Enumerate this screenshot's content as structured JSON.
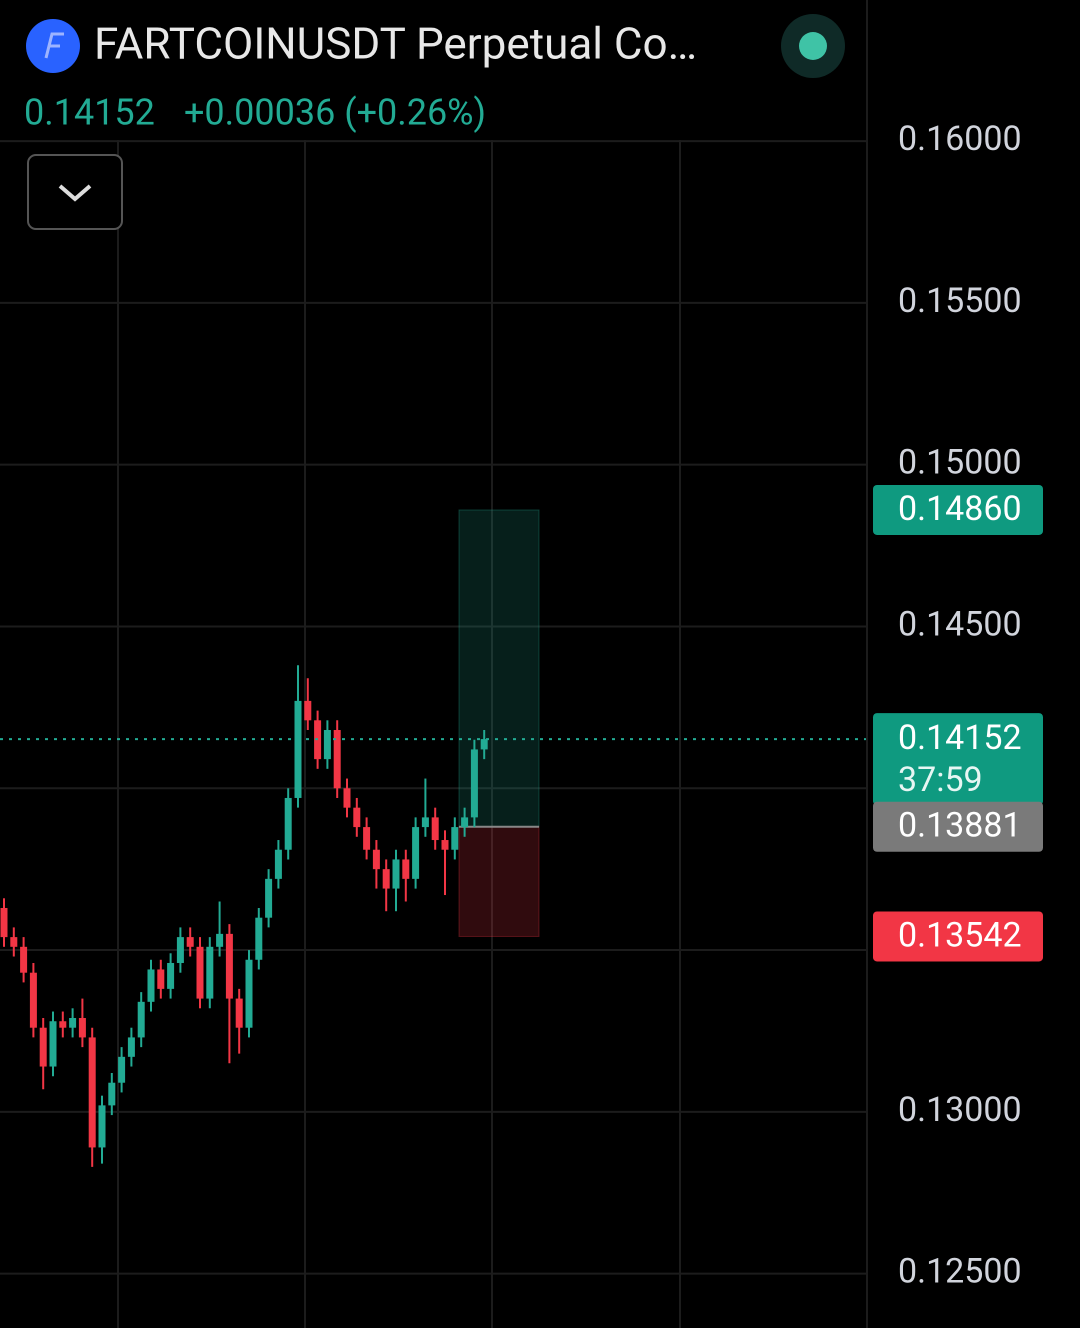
{
  "header": {
    "title": "FARTCOINUSDT Perpetual Co…",
    "last": 0.14152,
    "change": "+0.00036 (+0.26%)"
  },
  "chart_data": {
    "type": "candlestick",
    "up_color": "#22ab94",
    "down_color": "#f23645",
    "ylim": [
      0.12332,
      0.16436
    ],
    "yticks": [
      {
        "value": 0.16,
        "label": "0.16000"
      },
      {
        "value": 0.155,
        "label": "0.15500"
      },
      {
        "value": 0.15,
        "label": "0.15000"
      },
      {
        "value": 0.145,
        "label": "0.14500"
      },
      {
        "value": 0.14,
        "label": "0.14000"
      },
      {
        "value": 0.135,
        "label": "0.13500"
      },
      {
        "value": 0.13,
        "label": "0.13000"
      },
      {
        "value": 0.125,
        "label": "0.12500"
      }
    ],
    "grid": true,
    "ohlc": [
      [
        0.1363,
        0.1366,
        0.1351,
        0.1354
      ],
      [
        0.1354,
        0.1357,
        0.1348,
        0.1351
      ],
      [
        0.1351,
        0.1354,
        0.134,
        0.1343
      ],
      [
        0.1343,
        0.1346,
        0.1323,
        0.1326
      ],
      [
        0.1326,
        0.1329,
        0.1307,
        0.1314
      ],
      [
        0.1314,
        0.1331,
        0.1311,
        0.1328
      ],
      [
        0.1328,
        0.1331,
        0.1323,
        0.1326
      ],
      [
        0.1326,
        0.1332,
        0.1323,
        0.1329
      ],
      [
        0.1329,
        0.1335,
        0.132,
        0.1323
      ],
      [
        0.1323,
        0.1326,
        0.1283,
        0.1289
      ],
      [
        0.1289,
        0.1305,
        0.1284,
        0.1302
      ],
      [
        0.1302,
        0.1312,
        0.1299,
        0.1309
      ],
      [
        0.1309,
        0.132,
        0.1306,
        0.1317
      ],
      [
        0.1317,
        0.1326,
        0.1314,
        0.1323
      ],
      [
        0.1323,
        0.1337,
        0.132,
        0.1334
      ],
      [
        0.1334,
        0.1347,
        0.1331,
        0.1344
      ],
      [
        0.1344,
        0.1347,
        0.1335,
        0.1338
      ],
      [
        0.1338,
        0.1349,
        0.1335,
        0.1346
      ],
      [
        0.1346,
        0.1357,
        0.1343,
        0.1354
      ],
      [
        0.1354,
        0.1357,
        0.1348,
        0.1351
      ],
      [
        0.1351,
        0.1354,
        0.1332,
        0.1335
      ],
      [
        0.1335,
        0.1354,
        0.1332,
        0.1351
      ],
      [
        0.1351,
        0.1365,
        0.1348,
        0.1355
      ],
      [
        0.1355,
        0.1358,
        0.1315,
        0.1335
      ],
      [
        0.1335,
        0.1338,
        0.1318,
        0.1326
      ],
      [
        0.1326,
        0.135,
        0.1323,
        0.1347
      ],
      [
        0.1347,
        0.1363,
        0.1344,
        0.136
      ],
      [
        0.136,
        0.1375,
        0.1357,
        0.1372
      ],
      [
        0.1372,
        0.1384,
        0.1369,
        0.1381
      ],
      [
        0.1381,
        0.14,
        0.1378,
        0.1397
      ],
      [
        0.1397,
        0.1438,
        0.1394,
        0.1427
      ],
      [
        0.1427,
        0.1434,
        0.1418,
        0.1421
      ],
      [
        0.1421,
        0.1424,
        0.1406,
        0.1409
      ],
      [
        0.1409,
        0.1421,
        0.1406,
        0.1418
      ],
      [
        0.1418,
        0.1421,
        0.1397,
        0.14
      ],
      [
        0.14,
        0.1403,
        0.1391,
        0.1394
      ],
      [
        0.1394,
        0.1397,
        0.1385,
        0.1388
      ],
      [
        0.1388,
        0.1391,
        0.1378,
        0.1381
      ],
      [
        0.1381,
        0.1384,
        0.1369,
        0.1375
      ],
      [
        0.1375,
        0.1378,
        0.1362,
        0.1369
      ],
      [
        0.1369,
        0.1381,
        0.1362,
        0.1378
      ],
      [
        0.1378,
        0.1381,
        0.1365,
        0.1372
      ],
      [
        0.1372,
        0.1391,
        0.1369,
        0.1388
      ],
      [
        0.1388,
        0.1403,
        0.1385,
        0.1391
      ],
      [
        0.1391,
        0.1394,
        0.1381,
        0.1384
      ],
      [
        0.1384,
        0.1387,
        0.1367,
        0.1381
      ],
      [
        0.1381,
        0.1391,
        0.1378,
        0.1388
      ],
      [
        0.1388,
        0.1394,
        0.1385,
        0.1391
      ],
      [
        0.1391,
        0.1415,
        0.1388,
        0.1412
      ],
      [
        0.1412,
        0.1418,
        0.1409,
        0.14152
      ]
    ],
    "target": {
      "value": 0.1486,
      "label": "0.14860"
    },
    "entry": {
      "value": 0.13881,
      "label": "0.13881"
    },
    "stop": {
      "value": 0.13542,
      "label": "0.13542"
    },
    "current": 0.14152,
    "countdown": "37:59"
  }
}
